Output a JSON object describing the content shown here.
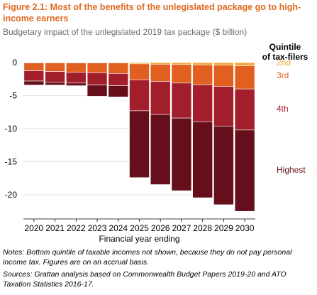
{
  "header": {
    "title": "Figure 2.1: Most of the benefits of the unlegislated package go to high-income earners",
    "subtitle": "Budgetary impact of the unlegislated 2019 tax package ($ billion)"
  },
  "footer": {
    "notes": "Notes: Bottom quintile of taxable incomes not shown, because they do not pay personal income tax. Figures are on an accrual basis.",
    "sources": "Sources: Grattan analysis based on Commonwealth Budget Papers 2019-20 and ATO Taxation Statistics 2016-17."
  },
  "colors": {
    "2nd": "#f3a93a",
    "3rd": "#e1601f",
    "4th": "#a31e2b",
    "Highest": "#640f19",
    "label_3rd": "#e1601f",
    "label_4th": "#a31e2b",
    "label_highest": "#640f19",
    "label_2nd": "#f3a93a"
  },
  "chart_data": {
    "type": "bar",
    "stacked": true,
    "title": "Figure 2.1: Most of the benefits of the unlegislated package go to high-income earners",
    "subtitle": "Budgetary impact of the unlegislated 2019 tax package ($ billion)",
    "xlabel": "Financial year ending",
    "ylabel": "",
    "ylim": [
      -23,
      1
    ],
    "yticks": [
      0,
      -5,
      -10,
      -15,
      -20
    ],
    "grid": true,
    "legend_title": "Quintile of tax-filers",
    "legend_position": "right, labels beside last bar",
    "categories": [
      "2020",
      "2021",
      "2022",
      "2023",
      "2024",
      "2025",
      "2026",
      "2027",
      "2028",
      "2029",
      "2030"
    ],
    "series": [
      {
        "name": "2nd",
        "values": [
          -0.05,
          -0.05,
          -0.05,
          -0.05,
          -0.05,
          -0.2,
          -0.25,
          -0.3,
          -0.35,
          -0.4,
          -0.5
        ]
      },
      {
        "name": "3rd",
        "values": [
          -1.2,
          -1.3,
          -1.4,
          -1.5,
          -1.6,
          -2.4,
          -2.6,
          -2.8,
          -3.0,
          -3.2,
          -3.5
        ]
      },
      {
        "name": "4th",
        "values": [
          -1.55,
          -1.65,
          -1.65,
          -1.85,
          -1.85,
          -4.7,
          -5.0,
          -5.3,
          -5.6,
          -6.0,
          -6.2
        ]
      },
      {
        "name": "Highest",
        "values": [
          -0.6,
          -0.4,
          -0.4,
          -1.7,
          -1.7,
          -10.1,
          -10.6,
          -11.0,
          -11.5,
          -11.9,
          -12.3
        ]
      }
    ]
  }
}
